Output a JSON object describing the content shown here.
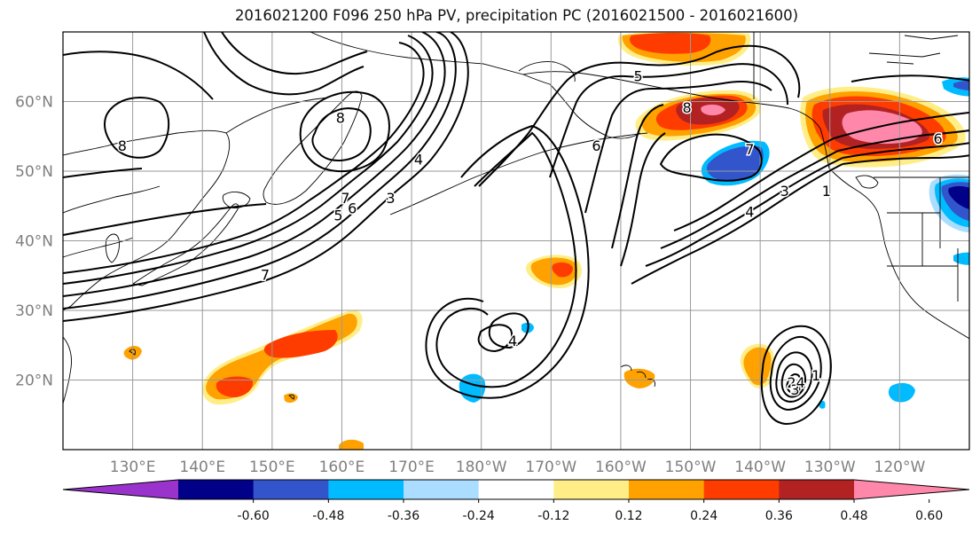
{
  "title": "2016021200 F096 250 hPa PV, precipitation PC (2016021500 - 2016021600)",
  "map": {
    "lon_range": [
      120,
      250
    ],
    "lat_range": [
      10,
      70
    ],
    "lat_ticks": [
      {
        "value": 20,
        "label": "20°N"
      },
      {
        "value": 30,
        "label": "30°N"
      },
      {
        "value": 40,
        "label": "40°N"
      },
      {
        "value": 50,
        "label": "50°N"
      },
      {
        "value": 60,
        "label": "60°N"
      }
    ],
    "lon_ticks": [
      {
        "value": 130,
        "label": "130°E"
      },
      {
        "value": 140,
        "label": "140°E"
      },
      {
        "value": 150,
        "label": "150°E"
      },
      {
        "value": 160,
        "label": "160°E"
      },
      {
        "value": 170,
        "label": "170°E"
      },
      {
        "value": 180,
        "label": "180°W"
      },
      {
        "value": 190,
        "label": "170°W"
      },
      {
        "value": 200,
        "label": "160°W"
      },
      {
        "value": 210,
        "label": "150°W"
      },
      {
        "value": 220,
        "label": "140°W"
      },
      {
        "value": 230,
        "label": "130°W"
      },
      {
        "value": 240,
        "label": "120°W"
      }
    ],
    "contour_labels": [
      {
        "text": "8",
        "lon": 128.5,
        "lat": 53.5
      },
      {
        "text": "8",
        "lon": 159.8,
        "lat": 57.5
      },
      {
        "text": "7",
        "lon": 160.5,
        "lat": 46.0
      },
      {
        "text": "6",
        "lon": 161.5,
        "lat": 44.5
      },
      {
        "text": "5",
        "lon": 159.5,
        "lat": 43.5
      },
      {
        "text": "4",
        "lon": 171.0,
        "lat": 51.5
      },
      {
        "text": "3",
        "lon": 167.0,
        "lat": 46.0
      },
      {
        "text": "7",
        "lon": 149.0,
        "lat": 35.0
      },
      {
        "text": "4",
        "lon": 184.5,
        "lat": 25.5
      },
      {
        "text": "5",
        "lon": 202.5,
        "lat": 63.5
      },
      {
        "text": "6",
        "lon": 196.5,
        "lat": 53.5
      },
      {
        "text": "8",
        "lon": 209.5,
        "lat": 59.0
      },
      {
        "text": "7",
        "lon": 218.5,
        "lat": 53.0
      },
      {
        "text": "4",
        "lon": 218.5,
        "lat": 44.0
      },
      {
        "text": "3",
        "lon": 223.5,
        "lat": 47.0
      },
      {
        "text": "1",
        "lon": 229.5,
        "lat": 47.0
      },
      {
        "text": "6",
        "lon": 245.5,
        "lat": 54.5
      },
      {
        "text": "1",
        "lon": 228.0,
        "lat": 20.5
      },
      {
        "text": "2",
        "lon": 224.5,
        "lat": 19.5
      },
      {
        "text": "3",
        "lon": 225.0,
        "lat": 18.5
      },
      {
        "text": "4",
        "lon": 225.8,
        "lat": 19.5
      }
    ]
  },
  "colorbar": {
    "colors": [
      "#9933cc",
      "#000088",
      "#3355cc",
      "#00bbff",
      "#aaddff",
      "#ffffff",
      "#ffee88",
      "#ffa200",
      "#ff3c00",
      "#b22222",
      "#ff88aa"
    ],
    "ticks": [
      "-0.60",
      "-0.48",
      "-0.36",
      "-0.24",
      "-0.12",
      "0.12",
      "0.24",
      "0.36",
      "0.48",
      "0.60"
    ]
  }
}
